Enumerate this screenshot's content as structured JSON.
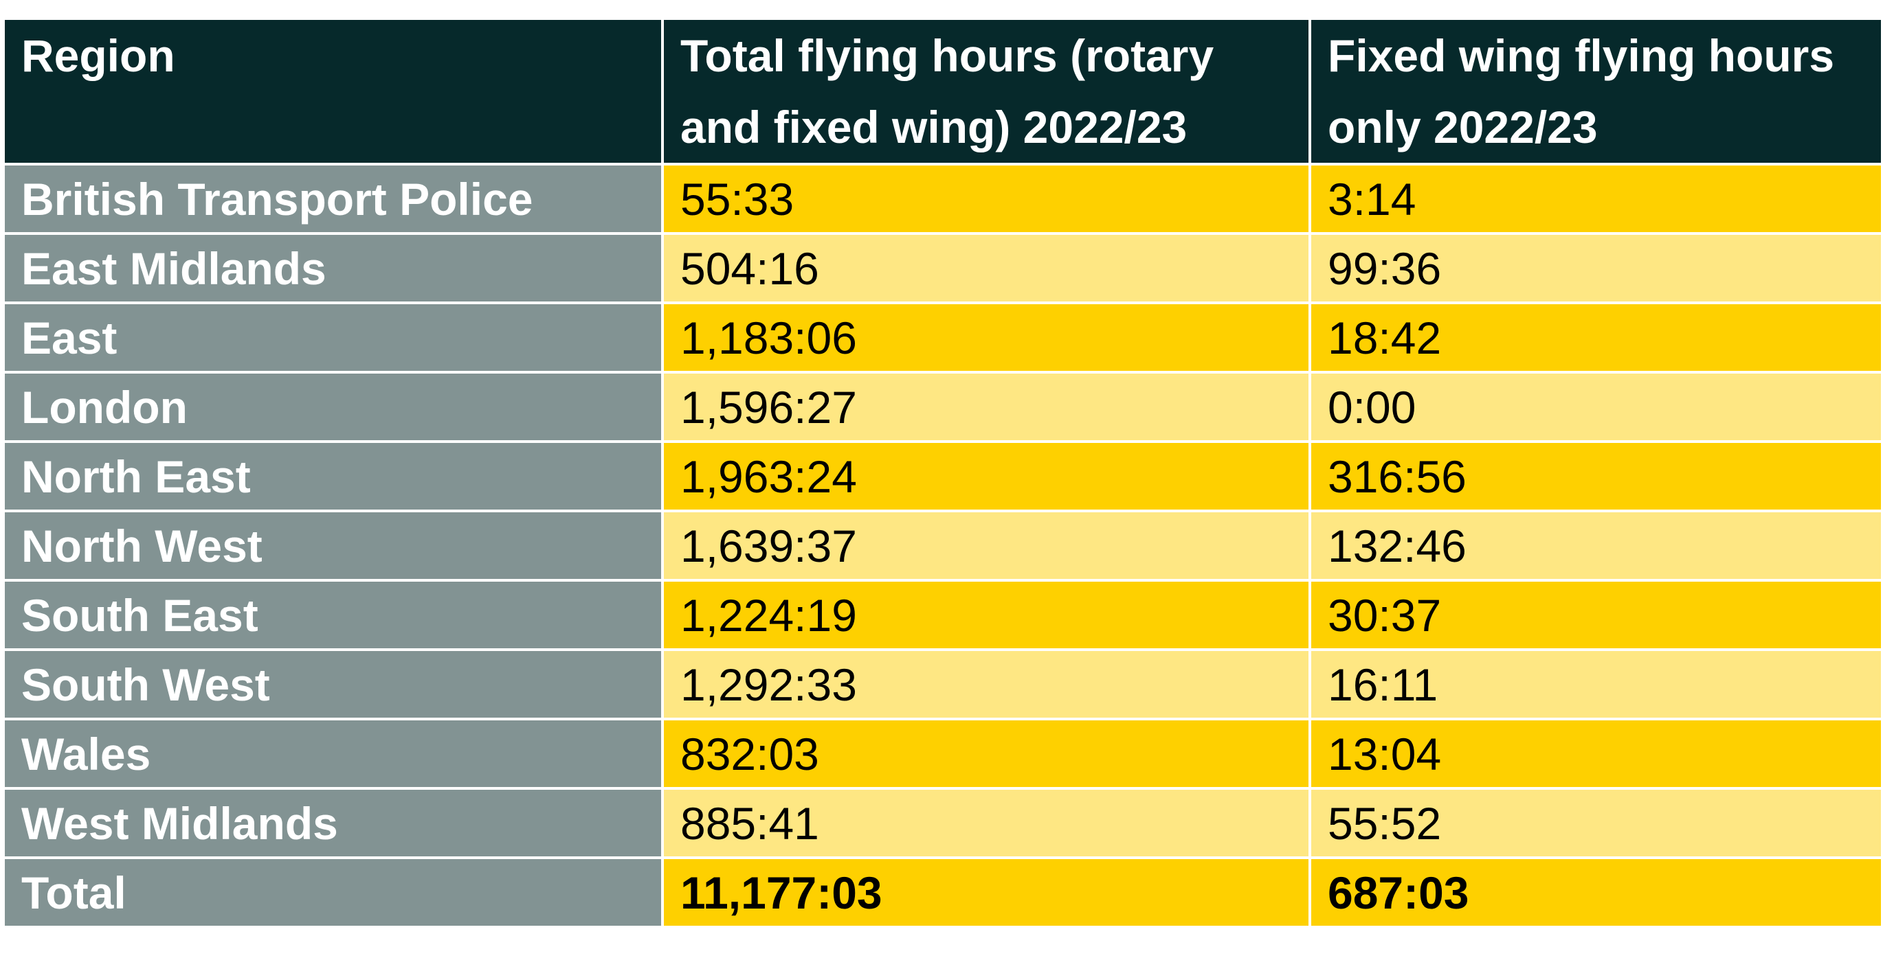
{
  "table": {
    "headers": [
      "Region",
      "Total flying hours (rotary and fixed wing) 2022/23",
      "Fixed wing flying hours only 2022/23"
    ],
    "rows": [
      {
        "region": "British Transport Police",
        "total": "55:33",
        "fixed": "3:14"
      },
      {
        "region": "East Midlands",
        "total": "504:16",
        "fixed": "99:36"
      },
      {
        "region": "East",
        "total": "1,183:06",
        "fixed": "18:42"
      },
      {
        "region": "London",
        "total": "1,596:27",
        "fixed": "0:00"
      },
      {
        "region": "North East",
        "total": "1,963:24",
        "fixed": "316:56"
      },
      {
        "region": "North West",
        "total": "1,639:37",
        "fixed": "132:46"
      },
      {
        "region": "South East",
        "total": "1,224:19",
        "fixed": "30:37"
      },
      {
        "region": "South West",
        "total": "1,292:33",
        "fixed": "16:11"
      },
      {
        "region": "Wales",
        "total": "832:03",
        "fixed": "13:04"
      },
      {
        "region": "West Midlands",
        "total": "885:41",
        "fixed": "55:52"
      }
    ],
    "total_row": {
      "region": "Total",
      "total": "11,177:03",
      "fixed": "687:03"
    }
  },
  "colors": {
    "header_bg": "#06292b",
    "region_bg": "#829393",
    "row_dark": "#fed000",
    "row_light": "#fee783",
    "border": "#ffffff"
  }
}
